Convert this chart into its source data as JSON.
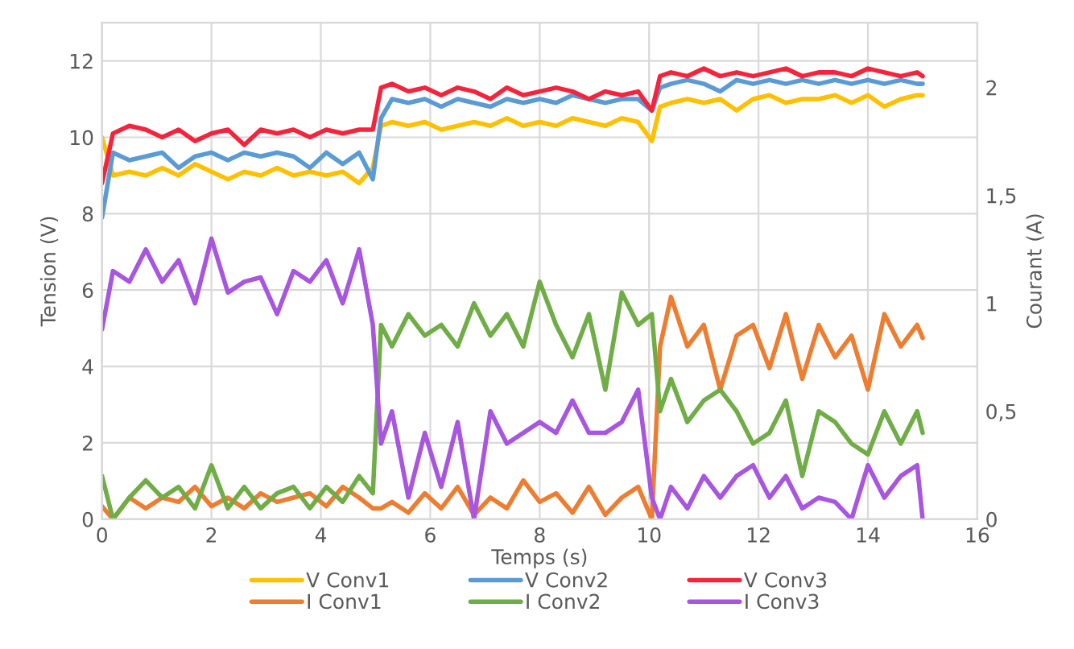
{
  "chart_data": {
    "type": "line",
    "xlabel": "Temps (s)",
    "ylabel": "Tension (V)",
    "y2label": "Courant (A)",
    "x": [
      0,
      0.2,
      0.5,
      0.8,
      1.1,
      1.4,
      1.7,
      2.0,
      2.3,
      2.6,
      2.9,
      3.2,
      3.5,
      3.8,
      4.1,
      4.4,
      4.7,
      4.95,
      5.1,
      5.3,
      5.6,
      5.9,
      6.2,
      6.5,
      6.8,
      7.1,
      7.4,
      7.7,
      8.0,
      8.3,
      8.6,
      8.9,
      9.2,
      9.5,
      9.8,
      10.05,
      10.2,
      10.4,
      10.7,
      11.0,
      11.3,
      11.6,
      11.9,
      12.2,
      12.5,
      12.8,
      13.1,
      13.4,
      13.7,
      14.0,
      14.3,
      14.6,
      14.9,
      15.0
    ],
    "xlim": [
      0,
      16
    ],
    "xticks": [
      0,
      2,
      4,
      6,
      8,
      10,
      12,
      14,
      16
    ],
    "ylim": [
      0,
      13
    ],
    "yticks": [
      0,
      2,
      4,
      6,
      8,
      10,
      12
    ],
    "y2lim": [
      0,
      2.3
    ],
    "y2ticks": [
      0,
      {
        "value": 0.5,
        "label": "0,5"
      },
      1,
      {
        "value": 1.5,
        "label": "1,5"
      },
      2
    ],
    "grid": true,
    "legend": "bottom",
    "line_style": "solid",
    "marker": "none",
    "series": [
      {
        "name": "V Conv1",
        "color": "#ffc000",
        "values": [
          10.0,
          9.0,
          9.1,
          9.0,
          9.2,
          9.0,
          9.3,
          9.1,
          8.9,
          9.1,
          9.0,
          9.2,
          9.0,
          9.1,
          9.0,
          9.1,
          8.8,
          9.2,
          10.3,
          10.4,
          10.3,
          10.4,
          10.2,
          10.3,
          10.4,
          10.3,
          10.5,
          10.3,
          10.4,
          10.3,
          10.5,
          10.4,
          10.3,
          10.5,
          10.4,
          9.9,
          10.8,
          10.9,
          11.0,
          10.9,
          11.0,
          10.7,
          11.0,
          11.1,
          10.9,
          11.0,
          11.0,
          11.1,
          10.9,
          11.1,
          10.8,
          11.0,
          11.1,
          11.1
        ]
      },
      {
        "name": "V Conv2",
        "color": "#5b9bd5",
        "values": [
          7.9,
          9.6,
          9.4,
          9.5,
          9.6,
          9.2,
          9.5,
          9.6,
          9.4,
          9.6,
          9.5,
          9.6,
          9.5,
          9.2,
          9.6,
          9.3,
          9.6,
          8.9,
          10.5,
          11.0,
          10.9,
          11.0,
          10.8,
          11.0,
          10.9,
          10.8,
          11.0,
          10.9,
          11.0,
          10.9,
          11.1,
          11.0,
          10.9,
          11.0,
          11.0,
          10.7,
          11.3,
          11.4,
          11.5,
          11.4,
          11.2,
          11.5,
          11.4,
          11.5,
          11.4,
          11.5,
          11.4,
          11.5,
          11.4,
          11.5,
          11.4,
          11.5,
          11.4,
          11.4
        ]
      },
      {
        "name": "V Conv3",
        "color": "#f5243c",
        "values": [
          8.8,
          10.1,
          10.3,
          10.2,
          10.0,
          10.2,
          9.9,
          10.1,
          10.2,
          9.8,
          10.2,
          10.1,
          10.2,
          10.0,
          10.2,
          10.1,
          10.2,
          10.2,
          11.3,
          11.4,
          11.2,
          11.3,
          11.1,
          11.3,
          11.2,
          11.0,
          11.3,
          11.1,
          11.2,
          11.3,
          11.2,
          11.0,
          11.2,
          11.1,
          11.2,
          10.7,
          11.6,
          11.7,
          11.6,
          11.8,
          11.6,
          11.7,
          11.6,
          11.7,
          11.8,
          11.6,
          11.7,
          11.7,
          11.6,
          11.8,
          11.7,
          11.6,
          11.7,
          11.6
        ]
      },
      {
        "name": "I Conv1",
        "color": "#ed7d31",
        "axis": "y2",
        "values": [
          0.06,
          0.0,
          0.1,
          0.05,
          0.1,
          0.08,
          0.15,
          0.06,
          0.1,
          0.05,
          0.12,
          0.08,
          0.1,
          0.12,
          0.06,
          0.15,
          0.1,
          0.05,
          0.05,
          0.08,
          0.03,
          0.12,
          0.05,
          0.15,
          0.02,
          0.1,
          0.05,
          0.18,
          0.08,
          0.12,
          0.03,
          0.15,
          0.02,
          0.1,
          0.15,
          0.0,
          0.8,
          1.03,
          0.8,
          0.9,
          0.6,
          0.85,
          0.9,
          0.7,
          0.95,
          0.65,
          0.9,
          0.75,
          0.85,
          0.6,
          0.95,
          0.8,
          0.9,
          0.84
        ]
      },
      {
        "name": "I Conv2",
        "color": "#70ad47",
        "axis": "y2",
        "values": [
          0.2,
          0.0,
          0.1,
          0.18,
          0.1,
          0.15,
          0.05,
          0.25,
          0.05,
          0.15,
          0.05,
          0.12,
          0.15,
          0.05,
          0.15,
          0.08,
          0.2,
          0.12,
          0.9,
          0.8,
          0.95,
          0.85,
          0.9,
          0.8,
          1.0,
          0.85,
          0.95,
          0.8,
          1.1,
          0.9,
          0.75,
          0.95,
          0.6,
          1.05,
          0.9,
          0.95,
          0.5,
          0.65,
          0.45,
          0.55,
          0.6,
          0.5,
          0.35,
          0.4,
          0.55,
          0.2,
          0.5,
          0.45,
          0.35,
          0.3,
          0.5,
          0.35,
          0.5,
          0.4
        ]
      },
      {
        "name": "I Conv3",
        "color": "#a855e0",
        "axis": "y2",
        "values": [
          0.88,
          1.15,
          1.1,
          1.25,
          1.1,
          1.2,
          1.0,
          1.3,
          1.05,
          1.1,
          1.12,
          0.95,
          1.15,
          1.1,
          1.2,
          1.0,
          1.25,
          0.9,
          0.35,
          0.5,
          0.1,
          0.4,
          0.15,
          0.45,
          0.0,
          0.5,
          0.35,
          0.4,
          0.45,
          0.4,
          0.55,
          0.4,
          0.4,
          0.45,
          0.6,
          0.1,
          0.0,
          0.15,
          0.05,
          0.2,
          0.1,
          0.2,
          0.25,
          0.1,
          0.2,
          0.05,
          0.1,
          0.08,
          0.0,
          0.25,
          0.1,
          0.2,
          0.25,
          0.0
        ]
      }
    ]
  }
}
